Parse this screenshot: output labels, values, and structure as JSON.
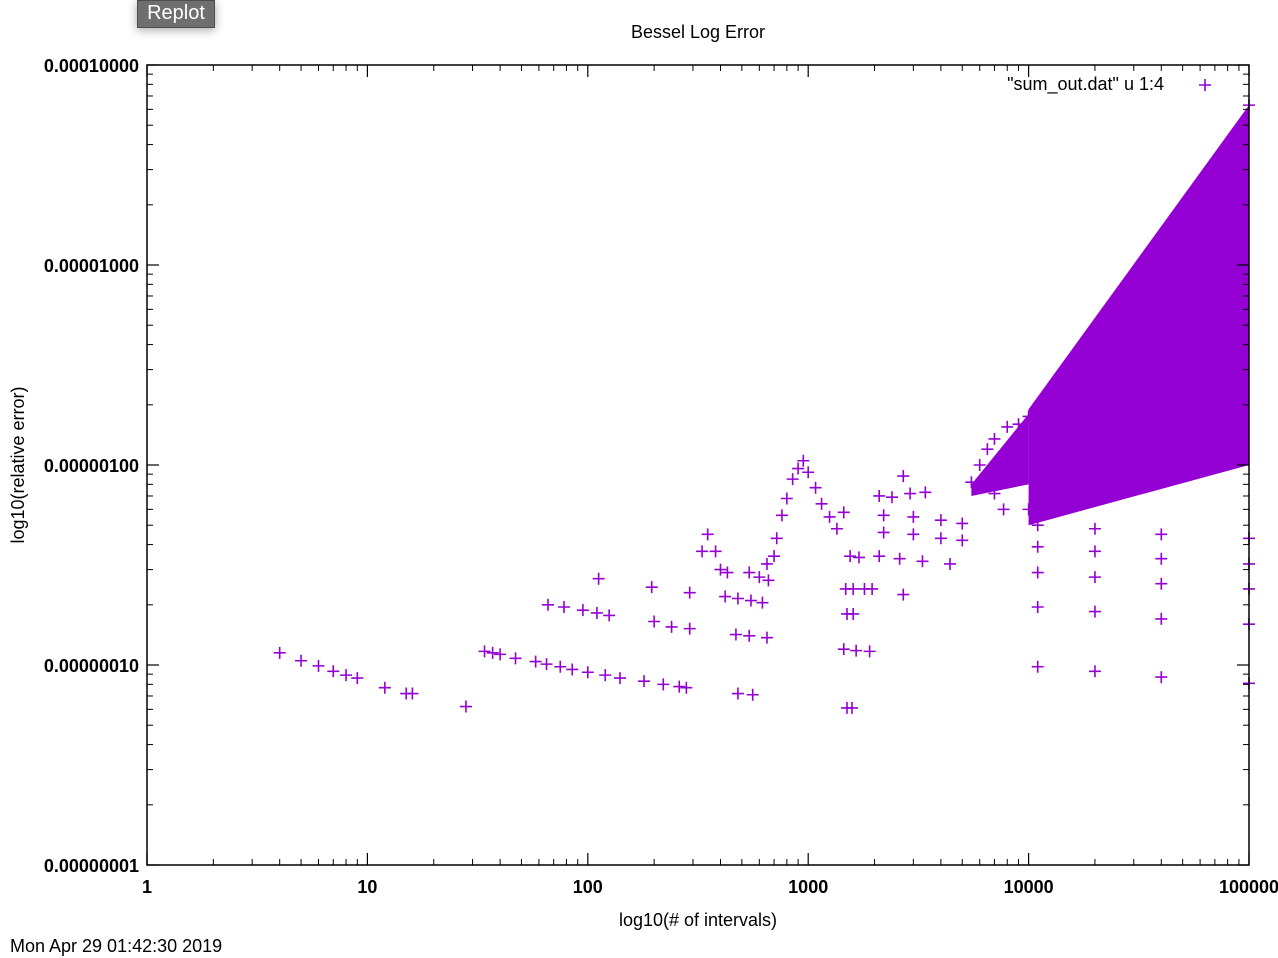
{
  "controls": {
    "replot_label": "Replot"
  },
  "timestamp": "Mon Apr 29 01:42:30 2019",
  "chart_data": {
    "type": "scatter",
    "title": "Bessel Log Error",
    "xlabel": "log10(# of intervals)",
    "ylabel": "log10(relative error)",
    "x_scale": "log",
    "y_scale": "log",
    "xlim": [
      1,
      100000
    ],
    "ylim": [
      1e-08,
      0.0001
    ],
    "x_tick_labels": [
      "1",
      "10",
      "100",
      "1000",
      "10000",
      "100000"
    ],
    "y_tick_labels": [
      "0.00000001",
      "0.00000010",
      "0.00000100",
      "0.00001000",
      "0.00010000"
    ],
    "grid": false,
    "legend_position": "top-right",
    "color": "#9400d3",
    "marker": "plus",
    "series": [
      {
        "name": "\"sum_out.dat\" u 1:4",
        "points": [
          [
            4,
            1.15e-07
          ],
          [
            5,
            1.05e-07
          ],
          [
            6,
            9.9e-08
          ],
          [
            7,
            9.3e-08
          ],
          [
            8,
            8.9e-08
          ],
          [
            9,
            8.6e-08
          ],
          [
            12,
            7.7e-08
          ],
          [
            15,
            7.2e-08
          ],
          [
            16,
            7.2e-08
          ],
          [
            28,
            6.2e-08
          ],
          [
            34,
            1.17e-07
          ],
          [
            37,
            1.15e-07
          ],
          [
            40,
            1.13e-07
          ],
          [
            47,
            1.08e-07
          ],
          [
            58,
            1.04e-07
          ],
          [
            65,
            1.01e-07
          ],
          [
            75,
            9.8e-08
          ],
          [
            85,
            9.5e-08
          ],
          [
            100,
            9.2e-08
          ],
          [
            120,
            8.9e-08
          ],
          [
            140,
            8.6e-08
          ],
          [
            180,
            8.3e-08
          ],
          [
            220,
            8e-08
          ],
          [
            260,
            7.8e-08
          ],
          [
            280,
            7.7e-08
          ],
          [
            66,
            2e-07
          ],
          [
            78,
            1.95e-07
          ],
          [
            95,
            1.88e-07
          ],
          [
            110,
            1.82e-07
          ],
          [
            125,
            1.77e-07
          ],
          [
            112,
            2.7e-07
          ],
          [
            195,
            2.45e-07
          ],
          [
            200,
            1.65e-07
          ],
          [
            240,
            1.55e-07
          ],
          [
            290,
            1.52e-07
          ],
          [
            290,
            2.3e-07
          ],
          [
            330,
            3.7e-07
          ],
          [
            350,
            4.5e-07
          ],
          [
            380,
            3.7e-07
          ],
          [
            400,
            3e-07
          ],
          [
            430,
            2.9e-07
          ],
          [
            420,
            2.2e-07
          ],
          [
            480,
            2.15e-07
          ],
          [
            550,
            2.1e-07
          ],
          [
            620,
            2.05e-07
          ],
          [
            470,
            1.42e-07
          ],
          [
            540,
            1.4e-07
          ],
          [
            650,
            1.37e-07
          ],
          [
            480,
            7.2e-08
          ],
          [
            560,
            7.1e-08
          ],
          [
            540,
            2.9e-07
          ],
          [
            600,
            2.75e-07
          ],
          [
            660,
            2.65e-07
          ],
          [
            700,
            3.5e-07
          ],
          [
            650,
            3.2e-07
          ],
          [
            720,
            4.3e-07
          ],
          [
            760,
            5.6e-07
          ],
          [
            800,
            6.8e-07
          ],
          [
            850,
            8.5e-07
          ],
          [
            900,
            9.6e-07
          ],
          [
            950,
            1.05e-06
          ],
          [
            1000,
            9.2e-07
          ],
          [
            1080,
            7.7e-07
          ],
          [
            1150,
            6.4e-07
          ],
          [
            1250,
            5.5e-07
          ],
          [
            1350,
            4.8e-07
          ],
          [
            1450,
            5.8e-07
          ],
          [
            1550,
            3.5e-07
          ],
          [
            1700,
            3.45e-07
          ],
          [
            1480,
            2.4e-07
          ],
          [
            1600,
            2.4e-07
          ],
          [
            1800,
            2.4e-07
          ],
          [
            1950,
            2.4e-07
          ],
          [
            1500,
            1.8e-07
          ],
          [
            1600,
            1.8e-07
          ],
          [
            1450,
            1.2e-07
          ],
          [
            1650,
            1.18e-07
          ],
          [
            1900,
            1.17e-07
          ],
          [
            1500,
            6.1e-08
          ],
          [
            1580,
            6.1e-08
          ],
          [
            2100,
            7e-07
          ],
          [
            2400,
            6.9e-07
          ],
          [
            2700,
            8.8e-07
          ],
          [
            2900,
            7.2e-07
          ],
          [
            3400,
            7.3e-07
          ],
          [
            2200,
            5.6e-07
          ],
          [
            3000,
            5.5e-07
          ],
          [
            4000,
            5.3e-07
          ],
          [
            5000,
            5.1e-07
          ],
          [
            2200,
            4.6e-07
          ],
          [
            3000,
            4.5e-07
          ],
          [
            4000,
            4.3e-07
          ],
          [
            5000,
            4.2e-07
          ],
          [
            2100,
            3.5e-07
          ],
          [
            2600,
            3.4e-07
          ],
          [
            3300,
            3.3e-07
          ],
          [
            4400,
            3.2e-07
          ],
          [
            2700,
            2.25e-07
          ],
          [
            5500,
            8.2e-07
          ],
          [
            6000,
            1e-06
          ],
          [
            6500,
            1.2e-06
          ],
          [
            7000,
            1.35e-06
          ],
          [
            8000,
            1.55e-06
          ],
          [
            9000,
            1.6e-06
          ],
          [
            10000,
            1.75e-06
          ],
          [
            7000,
            7.2e-07
          ],
          [
            7700,
            6e-07
          ],
          [
            10000,
            6e-07
          ],
          [
            11000,
            5e-07
          ],
          [
            20000,
            4.8e-07
          ],
          [
            40000,
            4.5e-07
          ],
          [
            100000,
            4.3e-07
          ],
          [
            11000,
            3.9e-07
          ],
          [
            20000,
            3.7e-07
          ],
          [
            40000,
            3.4e-07
          ],
          [
            100000,
            3.2e-07
          ],
          [
            11000,
            2.9e-07
          ],
          [
            20000,
            2.75e-07
          ],
          [
            40000,
            2.55e-07
          ],
          [
            100000,
            2.4e-07
          ],
          [
            11000,
            1.95e-07
          ],
          [
            20000,
            1.85e-07
          ],
          [
            40000,
            1.7e-07
          ],
          [
            100000,
            1.6e-07
          ],
          [
            11000,
            9.8e-08
          ],
          [
            20000,
            9.3e-08
          ],
          [
            40000,
            8.7e-08
          ],
          [
            100000,
            8.1e-08
          ],
          [
            12000,
            2.1e-06
          ],
          [
            15000,
            2.9e-06
          ],
          [
            20000,
            4.2e-06
          ],
          [
            30000,
            7.5e-06
          ],
          [
            40000,
            1.2e-05
          ],
          [
            60000,
            2.5e-05
          ],
          [
            80000,
            4e-05
          ],
          [
            100000,
            6.3e-05
          ]
        ],
        "dense_regions": [
          {
            "x_range": [
              5500,
              10000
            ],
            "y_lower": [
              7e-07,
              8e-07
            ],
            "y_upper": [
              8e-07,
              1.8e-06
            ]
          },
          {
            "x_range": [
              10000,
              100000
            ],
            "y_lower": [
              5e-07,
              1e-06
            ],
            "y_upper": [
              1.9e-06,
              6.3e-05
            ]
          }
        ]
      }
    ]
  }
}
